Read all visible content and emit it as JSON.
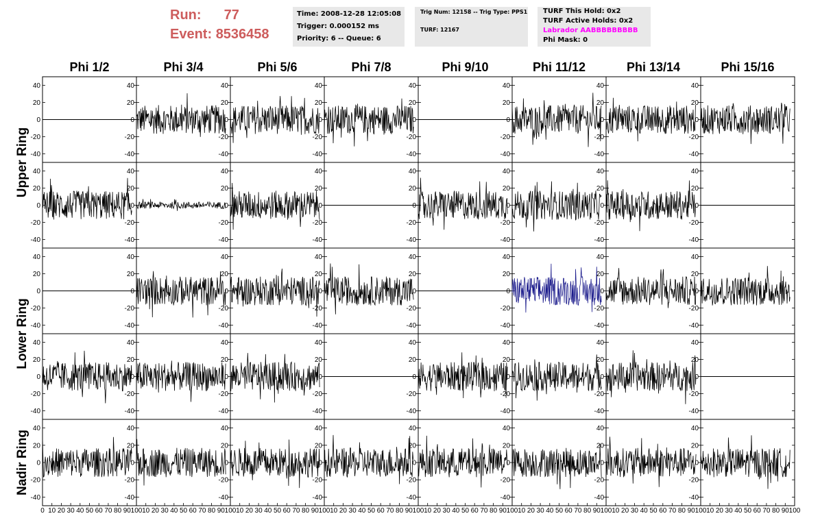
{
  "run_info": {
    "run_label": "Run:",
    "run_value": "77",
    "event_label": "Event:",
    "event_value": "8536458"
  },
  "time_box": {
    "time": "Time: 2008-12-28 12:05:08",
    "trigger": "Trigger: 0.000152 ms",
    "priority": "Priority: 6 -- Queue: 6"
  },
  "trig_box": {
    "trig": "Trig Num: 12158 -- Trig Type: PPS1",
    "turf": "TURF: 12167"
  },
  "turf_box": {
    "this_hold": "TURF This Hold: 0x2",
    "active_holds": "TURF Active Holds: 0x2",
    "labrador": "Labrador AABBBBBBBBB",
    "phi_mask": "Phi Mask: 0"
  },
  "colors": {
    "run_text": "#cd5c5c",
    "labrador_text": "#ff00ff",
    "info_box_bg": "#e8e8e8",
    "trace_default": "#000000",
    "trace_highlight": "#1c1c8c"
  },
  "columns": [
    "Phi 1/2",
    "Phi 3/4",
    "Phi 5/6",
    "Phi 7/8",
    "Phi 9/10",
    "Phi 11/12",
    "Phi 13/14",
    "Phi 15/16"
  ],
  "ring_labels": [
    {
      "label": "Upper Ring"
    },
    {
      "label": "Lower Ring"
    },
    {
      "label": "Nadir Ring"
    }
  ],
  "y_ticks": [
    "40",
    "20",
    "0",
    "-20",
    "-40"
  ],
  "x_ticks_first": [
    "0",
    "10",
    "20",
    "30",
    "40",
    "50",
    "60",
    "70",
    "80",
    "90",
    "100"
  ],
  "x_ticks_rest": [
    "10",
    "20",
    "30",
    "40",
    "50",
    "60",
    "70",
    "80",
    "90",
    "100"
  ],
  "chart_data": {
    "type": "line",
    "x_range": [
      0,
      100
    ],
    "y_range": [
      -50,
      50
    ],
    "rows": 5,
    "cols": 8,
    "panel_mode_note": "",
    "panel_modes": [
      [
        "flat",
        "noise",
        "noise",
        "noise",
        "flat",
        "noise",
        "noise",
        "noise"
      ],
      [
        "noise",
        "small",
        "noise",
        "flat",
        "noise",
        "noise",
        "noise",
        "flat"
      ],
      [
        "flat",
        "noise",
        "noise",
        "noise",
        "flat",
        "highlight",
        "noise",
        "noise"
      ],
      [
        "noise",
        "noise",
        "noise",
        "flat",
        "noise",
        "noise",
        "noise",
        "flat"
      ],
      [
        "noise",
        "noise",
        "noise",
        "noise",
        "noise",
        "noise",
        "noise",
        "noise"
      ]
    ]
  }
}
